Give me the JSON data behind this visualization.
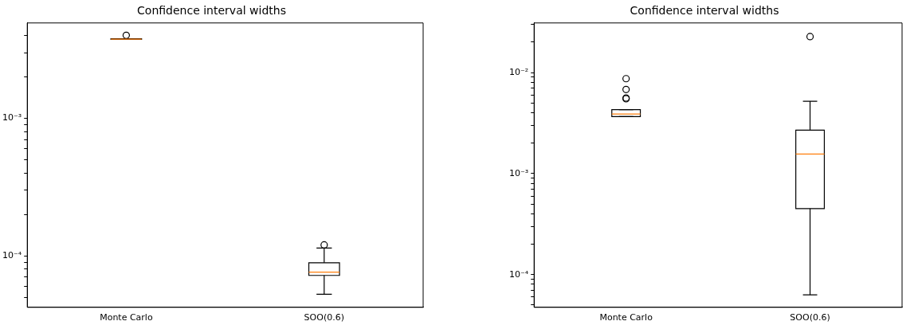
{
  "chart_data": [
    {
      "type": "box",
      "title": "Confidence interval widths",
      "categories": [
        "Monte Carlo",
        "SOO(0.6)"
      ],
      "log": "y",
      "grid": false,
      "marker": "circle",
      "boxes": [
        {
          "low": 0.00375,
          "q1": 0.00375,
          "median": 0.00376,
          "q3": 0.00378,
          "high": 0.00378,
          "outliers": [
            0.00401
          ]
        },
        {
          "low": 5.26e-05,
          "q1": 7.2e-05,
          "median": 7.6e-05,
          "q3": 8.9e-05,
          "high": 0.000114,
          "outliers": [
            0.00012
          ]
        }
      ],
      "ylim": [
        4.22e-05,
        0.00493
      ],
      "yticks": [
        {
          "value": 5e-05,
          "label": null
        },
        {
          "value": 6e-05,
          "label": null
        },
        {
          "value": 7e-05,
          "label": null
        },
        {
          "value": 8e-05,
          "label": null
        },
        {
          "value": 9e-05,
          "label": null
        },
        {
          "value": 0.0001,
          "label": "10⁻⁴"
        },
        {
          "value": 0.0002,
          "label": null
        },
        {
          "value": 0.0003,
          "label": null
        },
        {
          "value": 0.0004,
          "label": null
        },
        {
          "value": 0.0005,
          "label": null
        },
        {
          "value": 0.0006,
          "label": null
        },
        {
          "value": 0.0007,
          "label": null
        },
        {
          "value": 0.0008,
          "label": null
        },
        {
          "value": 0.0009,
          "label": null
        },
        {
          "value": 0.001,
          "label": "10⁻³"
        },
        {
          "value": 0.002,
          "label": null
        },
        {
          "value": 0.003,
          "label": null
        },
        {
          "value": 0.004,
          "label": null
        }
      ]
    },
    {
      "type": "box",
      "title": "Confidence interval widths",
      "categories": [
        "Monte Carlo",
        "SOO(0.6)"
      ],
      "log": "y",
      "grid": false,
      "marker": "circle",
      "boxes": [
        {
          "low": 0.00366,
          "q1": 0.00366,
          "median": 0.00389,
          "q3": 0.0043,
          "high": 0.0043,
          "outliers": [
            0.0087,
            0.0068,
            0.0056,
            0.0055
          ]
        },
        {
          "low": 6.3e-05,
          "q1": 0.00045,
          "median": 0.00156,
          "q3": 0.00269,
          "high": 0.0052,
          "outliers": [
            0.0227
          ]
        }
      ],
      "ylim": [
        4.74e-05,
        0.031
      ],
      "yticks": [
        {
          "value": 5e-05,
          "label": null
        },
        {
          "value": 6e-05,
          "label": null
        },
        {
          "value": 7e-05,
          "label": null
        },
        {
          "value": 8e-05,
          "label": null
        },
        {
          "value": 9e-05,
          "label": null
        },
        {
          "value": 0.0001,
          "label": "10⁻⁴"
        },
        {
          "value": 0.0002,
          "label": null
        },
        {
          "value": 0.0003,
          "label": null
        },
        {
          "value": 0.0004,
          "label": null
        },
        {
          "value": 0.0005,
          "label": null
        },
        {
          "value": 0.0006,
          "label": null
        },
        {
          "value": 0.0007,
          "label": null
        },
        {
          "value": 0.0008,
          "label": null
        },
        {
          "value": 0.0009,
          "label": null
        },
        {
          "value": 0.001,
          "label": "10⁻³"
        },
        {
          "value": 0.002,
          "label": null
        },
        {
          "value": 0.003,
          "label": null
        },
        {
          "value": 0.004,
          "label": null
        },
        {
          "value": 0.005,
          "label": null
        },
        {
          "value": 0.006,
          "label": null
        },
        {
          "value": 0.007,
          "label": null
        },
        {
          "value": 0.008,
          "label": null
        },
        {
          "value": 0.009,
          "label": null
        },
        {
          "value": 0.01,
          "label": "10⁻²"
        },
        {
          "value": 0.02,
          "label": null
        },
        {
          "value": 0.03,
          "label": null
        }
      ]
    }
  ]
}
